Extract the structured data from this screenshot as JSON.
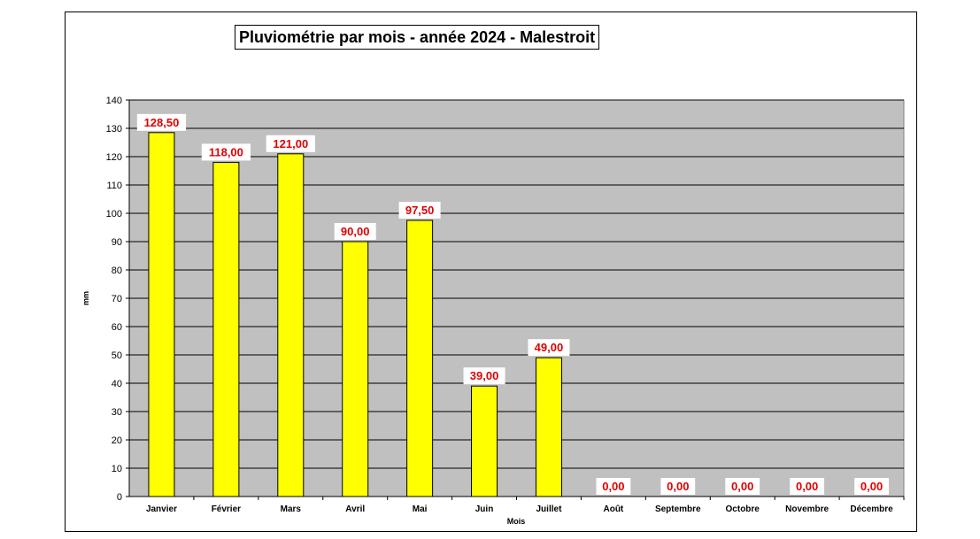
{
  "chart_data": {
    "type": "bar",
    "title": "Pluviométrie par mois - année 2024 - Malestroit",
    "xlabel": "Mois",
    "ylabel": "mm",
    "categories": [
      "Janvier",
      "Février",
      "Mars",
      "Avril",
      "Mai",
      "Juin",
      "Juillet",
      "Août",
      "Septembre",
      "Octobre",
      "Novembre",
      "Décembre"
    ],
    "values": [
      128.5,
      118,
      121,
      90,
      97.5,
      39,
      49,
      0,
      0,
      0,
      0,
      0
    ],
    "data_labels": [
      "128,50",
      "118,00",
      "121,00",
      "90,00",
      "97,50",
      "39,00",
      "49,00",
      "0,00",
      "0,00",
      "0,00",
      "0,00",
      "0,00"
    ],
    "ylim": [
      0,
      140
    ],
    "yticks": [
      "0",
      "10",
      "20",
      "30",
      "40",
      "50",
      "60",
      "70",
      "80",
      "90",
      "100",
      "110",
      "120",
      "130",
      "140"
    ],
    "grid": true,
    "colors": {
      "bar": "#ffff00",
      "plot_background": "#c0c0c0",
      "data_label": "#e00000"
    }
  }
}
